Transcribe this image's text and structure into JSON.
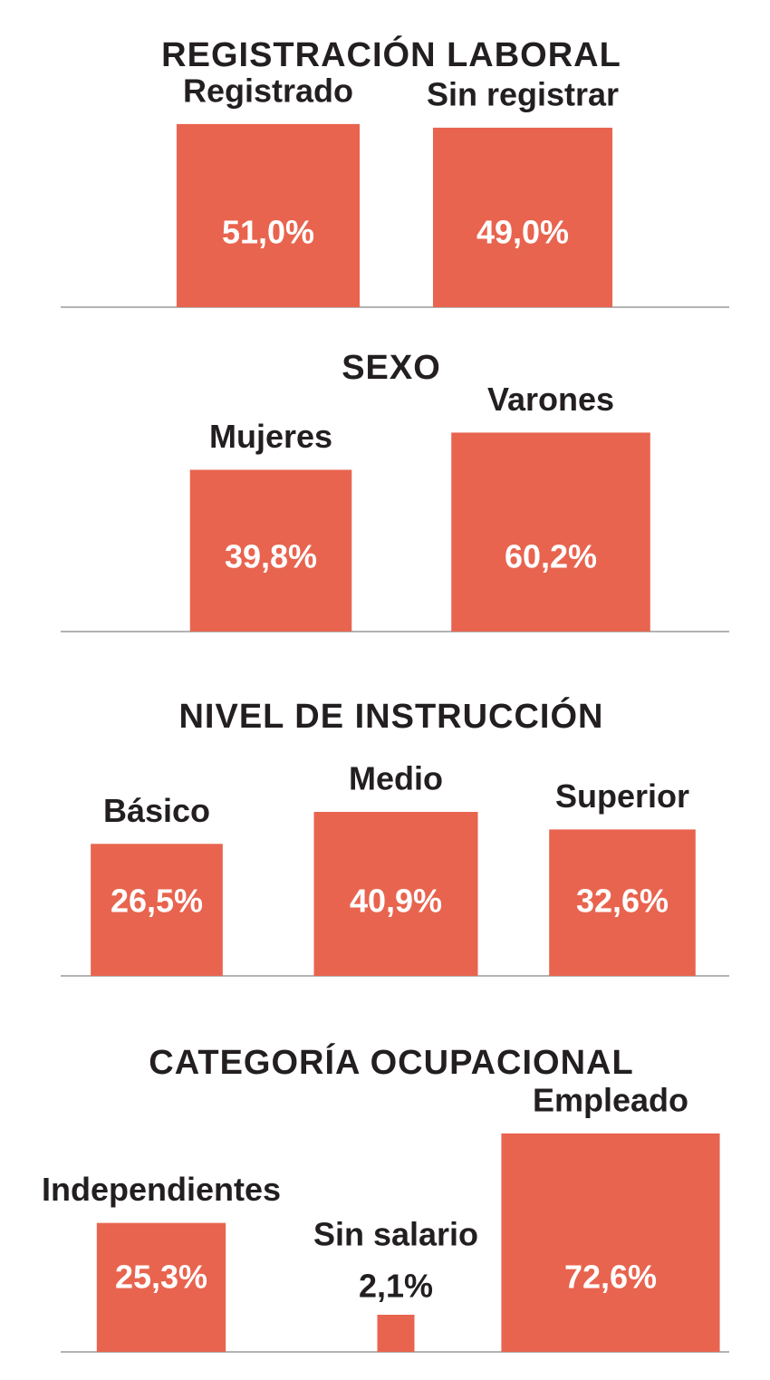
{
  "chart_data": [
    {
      "type": "bar",
      "title": "REGISTRACIÓN LABORAL",
      "categories": [
        "Registrado",
        "Sin registrar"
      ],
      "values": [
        51.0,
        49.0
      ],
      "value_labels": [
        "51,0%",
        "49,0%"
      ],
      "color": "#e8644f"
    },
    {
      "type": "bar",
      "title": "SEXO",
      "categories": [
        "Mujeres",
        "Varones"
      ],
      "values": [
        39.8,
        60.2
      ],
      "value_labels": [
        "39,8%",
        "60,2%"
      ],
      "color": "#e8644f"
    },
    {
      "type": "bar",
      "title": "NIVEL DE INSTRUCCIÓN",
      "categories": [
        "Básico",
        "Medio",
        "Superior"
      ],
      "values": [
        26.5,
        40.9,
        32.6
      ],
      "value_labels": [
        "26,5%",
        "40,9%",
        "32,6%"
      ],
      "color": "#e8644f"
    },
    {
      "type": "bar",
      "title": "CATEGORÍA OCUPACIONAL",
      "categories": [
        "Independientes",
        "Sin salario",
        "Empleado"
      ],
      "values": [
        25.3,
        2.1,
        72.6
      ],
      "value_labels": [
        "25,3%",
        "2,1%",
        "72,6%"
      ],
      "color": "#e8644f"
    }
  ]
}
